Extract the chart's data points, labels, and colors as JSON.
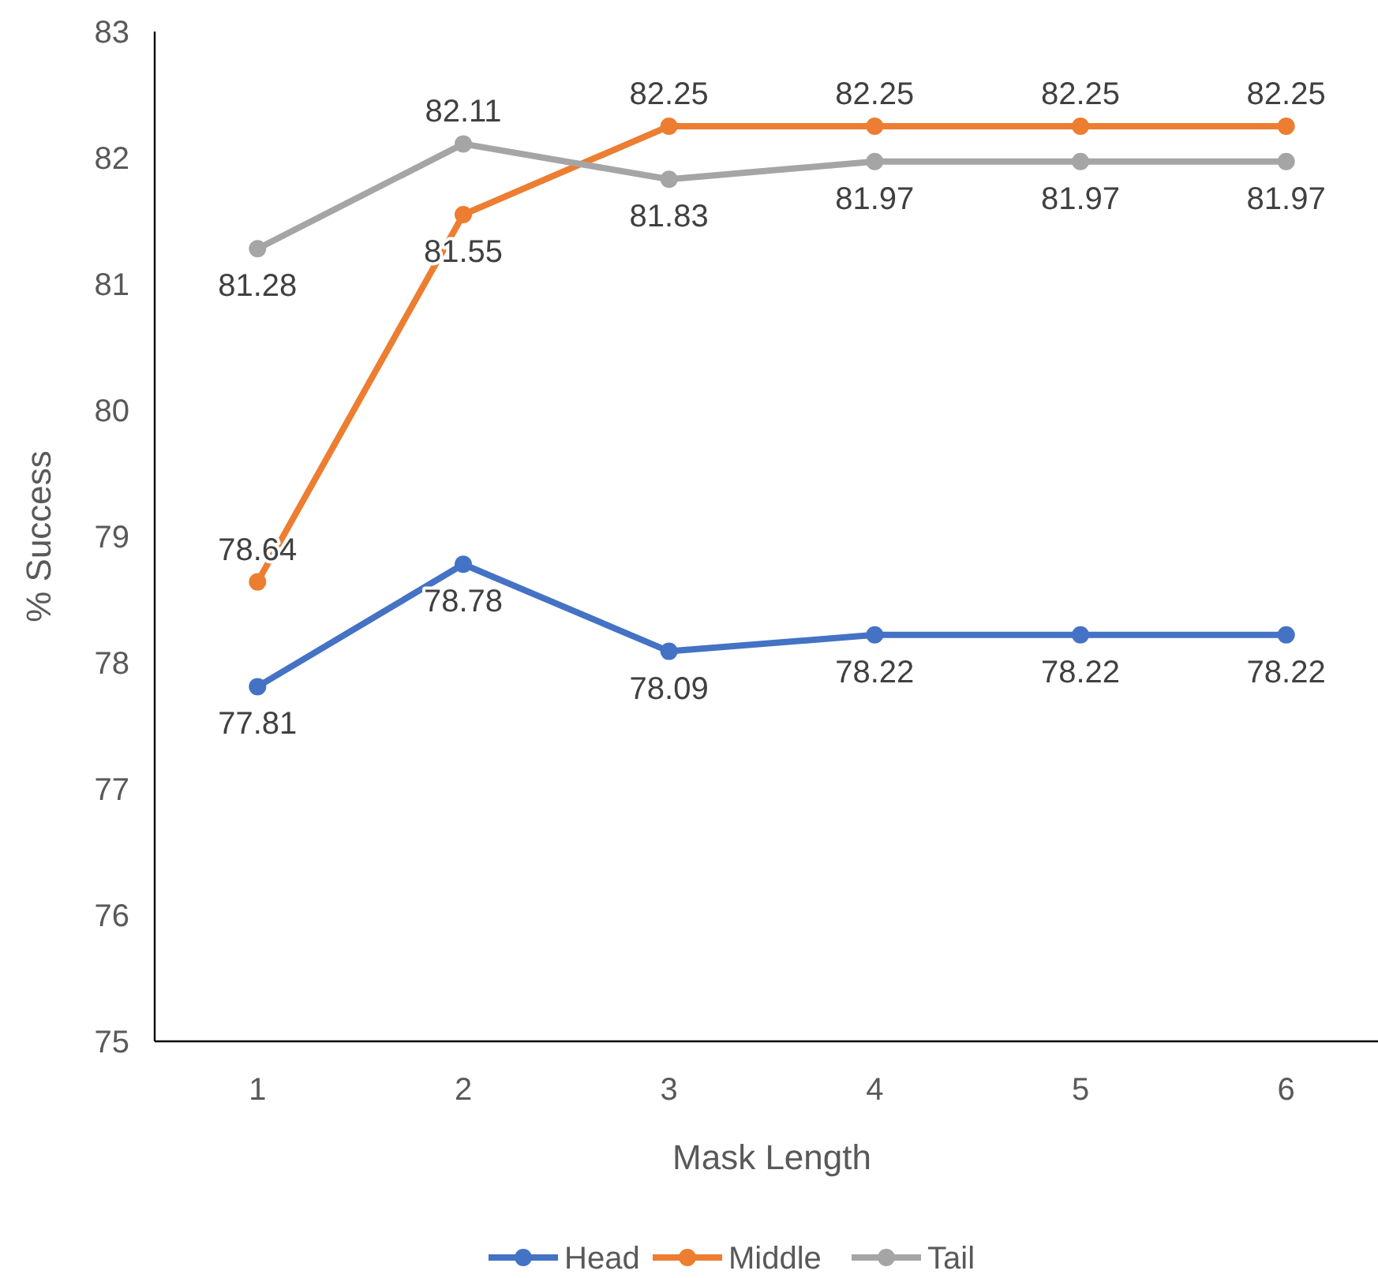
{
  "chart_data": {
    "type": "line",
    "xlabel": "Mask Length",
    "ylabel": "% Success",
    "categories": [
      "1",
      "2",
      "3",
      "4",
      "5",
      "6"
    ],
    "series": [
      {
        "name": "Head",
        "color": "#4472c4",
        "values": [
          77.81,
          78.78,
          78.09,
          78.22,
          78.22,
          78.22
        ]
      },
      {
        "name": "Middle",
        "color": "#ed7d31",
        "values": [
          78.64,
          81.55,
          82.25,
          82.25,
          82.25,
          82.25
        ]
      },
      {
        "name": "Tail",
        "color": "#a5a5a5",
        "values": [
          81.28,
          82.11,
          81.83,
          81.97,
          81.97,
          81.97
        ]
      }
    ],
    "ylim": [
      75,
      83
    ],
    "yticks": [
      75,
      76,
      77,
      78,
      79,
      80,
      81,
      82,
      83
    ],
    "marker": "circle",
    "line_style": "solid",
    "data_labels": true,
    "legend": "bottom",
    "grid": false
  }
}
